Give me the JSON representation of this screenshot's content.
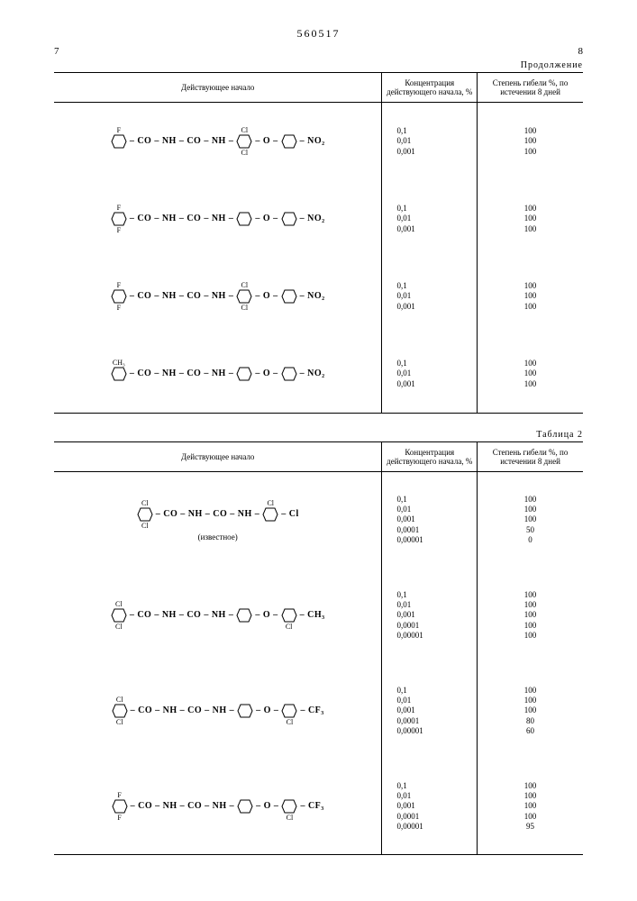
{
  "header": {
    "docnum": "560517",
    "page_left": "7",
    "page_right": "8",
    "continuation": "Продолжение"
  },
  "table1": {
    "col1": "Действующее начало",
    "col2": "Концентрация действующего начала, %",
    "col3": "Степень гибели %, по истечении 8 дней",
    "rows": [
      {
        "ring1": {
          "top": "F",
          "bot": ""
        },
        "ring2": {
          "top": "Cl",
          "bot": "Cl"
        },
        "oxy": true,
        "ring3_end": "NO₂",
        "conc": [
          "0,1",
          "0,01",
          "0,001"
        ],
        "res": [
          "100",
          "100",
          "100"
        ]
      },
      {
        "ring1": {
          "top": "F",
          "bot": "F"
        },
        "ring2": {
          "top": "",
          "bot": ""
        },
        "oxy": true,
        "ring3_end": "NO₂",
        "conc": [
          "0,1",
          "0,01",
          "0,001"
        ],
        "res": [
          "100",
          "100",
          "100"
        ]
      },
      {
        "ring1": {
          "top": "F",
          "bot": "F"
        },
        "ring2": {
          "top": "Cl",
          "bot": "Cl"
        },
        "oxy": true,
        "ring3_end": "NO₂",
        "conc": [
          "0,1",
          "0,01",
          "0,001"
        ],
        "res": [
          "100",
          "100",
          "100"
        ]
      },
      {
        "ring1": {
          "top": "CH₃",
          "bot": ""
        },
        "ring2": {
          "top": "",
          "bot": ""
        },
        "oxy": true,
        "ring3_end": "NO₂",
        "'": "",
        "conc": [
          "0,1",
          "0,01",
          "0,001"
        ],
        "res": [
          "100",
          "100",
          "100"
        ]
      }
    ]
  },
  "table2_label": "Таблица 2",
  "table2": {
    "col1": "Действующее начало",
    "col2": "Концентрация действующего начала, %",
    "col3": "Степень гибели %, по истечении 8 дней",
    "rows": [
      {
        "ring1": {
          "top": "Cl",
          "bot": "Cl"
        },
        "ring2": {
          "top": "Cl",
          "bot": ""
        },
        "ring2_right": "Cl",
        "oxy": false,
        "note": "(известное)",
        "conc": [
          "0,1",
          "0,01",
          "0,001",
          "0,0001",
          "0,00001"
        ],
        "res": [
          "100",
          "100",
          "100",
          "50",
          "0"
        ]
      },
      {
        "ring1": {
          "top": "Cl",
          "bot": "Cl"
        },
        "ring2": {
          "top": "",
          "bot": ""
        },
        "oxy": true,
        "ring3": {
          "top": "",
          "bot": "Cl"
        },
        "ring3_end": "CH₃",
        "conc": [
          "0,1",
          "0,01",
          "0,001",
          "0,0001",
          "0,00001"
        ],
        "res": [
          "100",
          "100",
          "100",
          "100",
          "100"
        ]
      },
      {
        "ring1": {
          "top": "Cl",
          "bot": "Cl"
        },
        "ring2": {
          "top": "",
          "bot": ""
        },
        "oxy": true,
        "ring3": {
          "top": "",
          "bot": "Cl"
        },
        "ring3_end": "CF₃",
        "conc": [
          "0,1",
          "0,01",
          "0,001",
          "0,0001",
          "0,00001"
        ],
        "res": [
          "100",
          "100",
          "100",
          "80",
          "60"
        ]
      },
      {
        "ring1": {
          "top": "F",
          "bot": "F"
        },
        "ring2": {
          "top": "",
          "bot": ""
        },
        "oxy": true,
        "ring3": {
          "top": "",
          "bot": "Cl"
        },
        "ring3_end": "CF₃",
        "conc": [
          "0,1",
          "0,01",
          "0,001",
          "0,0001",
          "0,00001"
        ],
        "res": [
          "100",
          "100",
          "100",
          "100",
          "95"
        ]
      }
    ]
  }
}
